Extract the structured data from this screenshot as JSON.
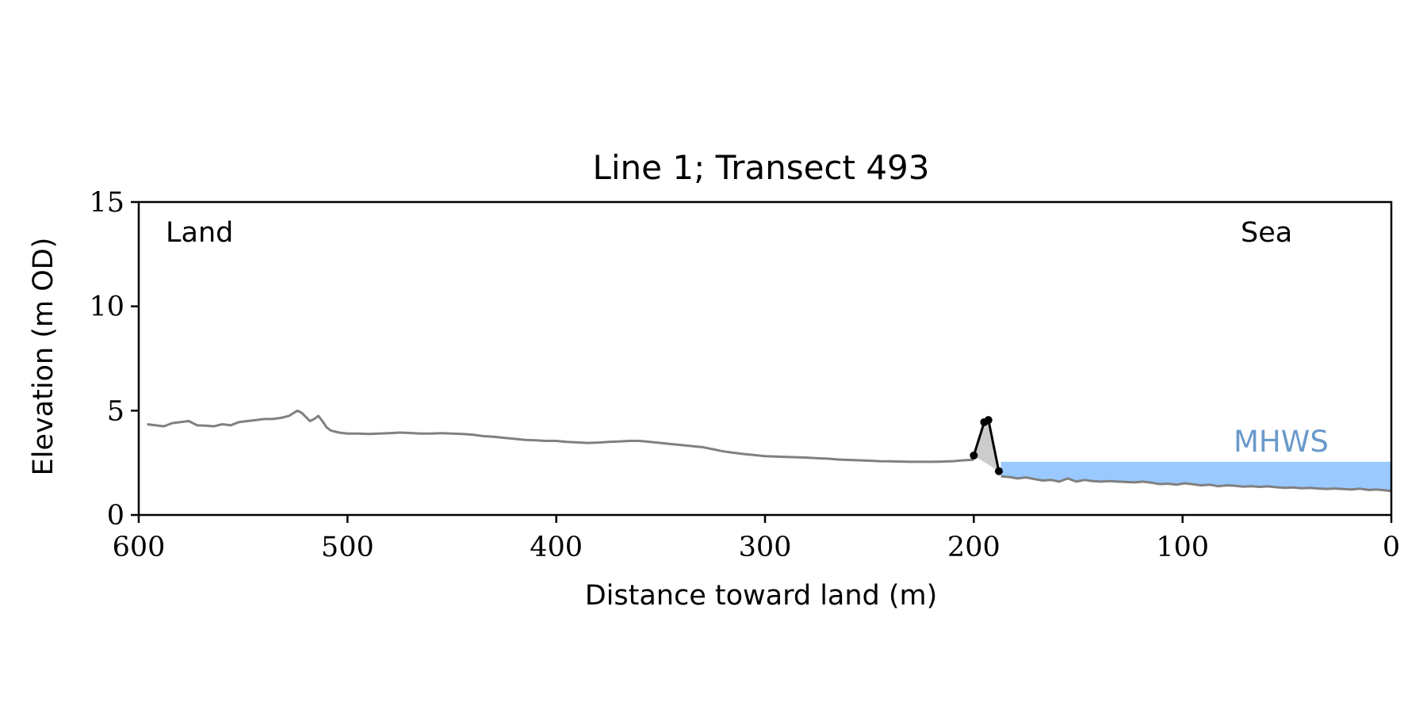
{
  "chart_data": {
    "type": "line",
    "title": "Line 1; Transect 493",
    "xlabel": "Distance toward land (m)",
    "ylabel": "Elevation (m OD)",
    "xlim": [
      600,
      0
    ],
    "ylim": [
      0,
      15
    ],
    "x_ticks": [
      600,
      500,
      400,
      300,
      200,
      100,
      0
    ],
    "y_ticks": [
      0,
      5,
      10,
      15
    ],
    "grid": false,
    "annotations": {
      "land": "Land",
      "sea": "Sea",
      "mhws": "MHWS"
    },
    "colors": {
      "profile": "#808080",
      "feature": "#000000",
      "feature_fill": "#cccccc",
      "water": "#99c9ff",
      "mhws_label": "#6a9acb"
    },
    "mhws_level": 2.55,
    "mhws_extent": [
      187,
      0
    ],
    "series": [
      {
        "x": [
          596,
          592,
          588,
          584,
          580,
          576,
          572,
          568,
          564,
          560,
          556,
          552,
          548,
          544,
          540,
          536,
          532,
          528,
          524,
          522,
          520,
          518,
          516,
          514,
          512,
          510,
          508,
          504,
          500,
          495,
          490,
          485,
          480,
          475,
          470,
          465,
          460,
          455,
          450,
          445,
          440,
          435,
          430,
          425,
          420,
          415,
          410,
          405,
          400,
          395,
          390,
          385,
          380,
          375,
          370,
          365,
          360,
          355,
          350,
          345,
          340,
          335,
          330,
          325,
          320,
          315,
          310,
          305,
          300,
          295,
          290,
          285,
          280,
          275,
          270,
          265,
          260,
          255,
          250,
          245,
          240,
          235,
          230,
          225,
          220,
          215,
          210,
          205,
          200
        ],
        "y": [
          4.35,
          4.3,
          4.25,
          4.4,
          4.45,
          4.5,
          4.3,
          4.28,
          4.25,
          4.35,
          4.3,
          4.45,
          4.5,
          4.55,
          4.6,
          4.6,
          4.65,
          4.75,
          5.0,
          4.9,
          4.7,
          4.5,
          4.6,
          4.75,
          4.5,
          4.2,
          4.05,
          3.95,
          3.9,
          3.9,
          3.88,
          3.9,
          3.92,
          3.95,
          3.93,
          3.9,
          3.9,
          3.92,
          3.9,
          3.88,
          3.85,
          3.78,
          3.75,
          3.7,
          3.65,
          3.6,
          3.58,
          3.55,
          3.55,
          3.5,
          3.48,
          3.45,
          3.47,
          3.5,
          3.52,
          3.55,
          3.55,
          3.5,
          3.45,
          3.4,
          3.35,
          3.3,
          3.25,
          3.15,
          3.05,
          2.98,
          2.92,
          2.87,
          2.82,
          2.8,
          2.78,
          2.77,
          2.75,
          2.72,
          2.7,
          2.66,
          2.64,
          2.62,
          2.6,
          2.58,
          2.57,
          2.56,
          2.55,
          2.55,
          2.55,
          2.56,
          2.58,
          2.62,
          2.65
        ]
      },
      {
        "x": [
          187,
          183,
          179,
          175,
          171,
          167,
          163,
          159,
          155,
          151,
          147,
          143,
          139,
          135,
          131,
          127,
          123,
          119,
          115,
          111,
          107,
          103,
          99,
          95,
          91,
          87,
          83,
          79,
          75,
          71,
          67,
          63,
          59,
          55,
          51,
          47,
          43,
          39,
          35,
          31,
          27,
          23,
          19,
          15,
          11,
          7,
          3,
          0
        ],
        "y": [
          1.85,
          1.82,
          1.75,
          1.8,
          1.72,
          1.65,
          1.68,
          1.6,
          1.75,
          1.6,
          1.68,
          1.62,
          1.6,
          1.62,
          1.6,
          1.58,
          1.56,
          1.6,
          1.55,
          1.48,
          1.5,
          1.45,
          1.52,
          1.47,
          1.42,
          1.45,
          1.38,
          1.42,
          1.4,
          1.36,
          1.38,
          1.35,
          1.37,
          1.33,
          1.3,
          1.32,
          1.28,
          1.3,
          1.27,
          1.25,
          1.27,
          1.24,
          1.22,
          1.26,
          1.2,
          1.22,
          1.18,
          1.15
        ]
      },
      {
        "x": [
          200,
          195,
          193,
          188
        ],
        "y": [
          2.85,
          4.45,
          4.55,
          2.1
        ]
      }
    ]
  }
}
